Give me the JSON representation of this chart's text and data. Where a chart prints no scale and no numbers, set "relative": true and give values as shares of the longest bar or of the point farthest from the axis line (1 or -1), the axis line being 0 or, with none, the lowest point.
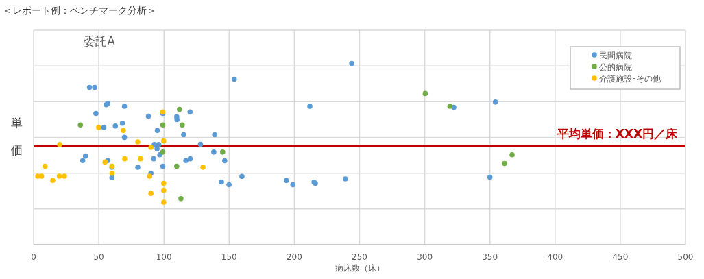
{
  "chart_data": {
    "type": "scatter",
    "title": "＜レポート例：ベンチマーク分析＞",
    "subtitle": "委託A",
    "xlabel": "病床数（床）",
    "ylabel": "単価",
    "relative": true,
    "xlim": [
      0,
      500
    ],
    "xticks": [
      0,
      50,
      100,
      150,
      200,
      250,
      300,
      350,
      400,
      450,
      500
    ],
    "grid": true,
    "legend": "top right",
    "marker": "circle",
    "ref_lines": [
      {
        "axis": "y",
        "value": 0.545,
        "label": "平均単価：XXX円／床",
        "color": "#c00000"
      }
    ],
    "series": [
      {
        "name": "民間病院",
        "color": "#5b9bd5",
        "x": [
          42.9,
          46.9,
          47.8,
          55.7,
          56.9,
          69.7,
          53.9,
          62.7,
          68.1,
          69.7,
          37.7,
          39.8,
          56.9,
          60.1,
          60.1,
          88.1,
          99.1,
          94.9,
          92.6,
          96.0,
          94.7,
          96.8,
          92.1,
          79.9,
          90.0,
          99.1,
          109.8,
          110.0,
          120.0,
          115.1,
          116.8,
          120.1,
          128.0,
          138.2,
          138.9,
          144.1,
          149.9,
          146.6,
          153.9,
          244.0,
          211.9,
          322.3,
          159.8,
          193.9,
          198.9,
          215.1,
          216.1,
          239.1,
          354.2,
          350.0
        ],
        "values": [
          0.868,
          0.868,
          0.724,
          0.772,
          0.78,
          0.764,
          0.647,
          0.655,
          0.67,
          0.592,
          0.464,
          0.489,
          0.464,
          0.427,
          0.37,
          0.709,
          0.724,
          0.63,
          0.553,
          0.553,
          0.529,
          0.496,
          0.474,
          0.427,
          0.394,
          0.433,
          0.705,
          0.69,
          0.732,
          0.607,
          0.464,
          0.474,
          0.554,
          0.511,
          0.607,
          0.346,
          0.331,
          0.463,
          0.913,
          1.0,
          0.764,
          0.758,
          0.377,
          0.354,
          0.331,
          0.345,
          0.338,
          0.363,
          0.787,
          0.372
        ]
      },
      {
        "name": "公的病院",
        "color": "#70ad47",
        "x": [
          35.9,
          99.1,
          99.1,
          111.9,
          114.0,
          109.8,
          113.0,
          145.0,
          300.4,
          319.3,
          361.2,
          367.0
        ],
        "values": [
          0.661,
          0.661,
          0.511,
          0.747,
          0.661,
          0.433,
          0.254,
          0.511,
          0.834,
          0.764,
          0.448,
          0.496
        ]
      },
      {
        "name": "介護施設･その他",
        "color": "#ffc000",
        "x": [
          3.2,
          6.1,
          8.8,
          14.7,
          19.8,
          23.6,
          20.0,
          49.9,
          68.8,
          54.8,
          60.1,
          60.1,
          69.9,
          79.9,
          82.0,
          90.0,
          89.0,
          90.0,
          99.1,
          99.8,
          99.8,
          99.8,
          99.8,
          129.9
        ],
        "values": [
          0.378,
          0.378,
          0.433,
          0.354,
          0.378,
          0.378,
          0.553,
          0.647,
          0.63,
          0.456,
          0.433,
          0.394,
          0.474,
          0.567,
          0.474,
          0.537,
          0.378,
          0.283,
          0.732,
          0.573,
          0.338,
          0.3,
          0.234,
          0.427
        ]
      }
    ]
  }
}
